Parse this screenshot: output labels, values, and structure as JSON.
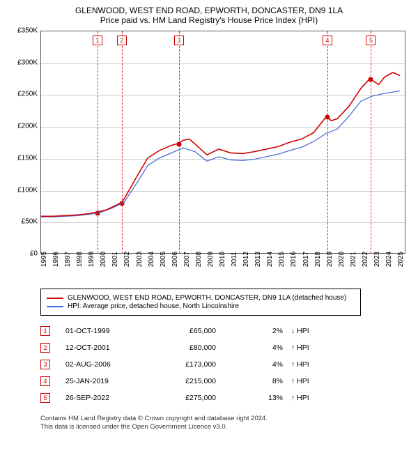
{
  "title": "GLENWOOD, WEST END ROAD, EPWORTH, DONCASTER, DN9 1LA",
  "subtitle": "Price paid vs. HM Land Registry's House Price Index (HPI)",
  "chart": {
    "type": "line",
    "background_color": "#ffffff",
    "grid_color": "#cccccc",
    "border_color": "#555555",
    "x": {
      "min": 1995,
      "max": 2025.7,
      "ticks": [
        1995,
        1996,
        1997,
        1998,
        1999,
        2000,
        2001,
        2002,
        2003,
        2004,
        2005,
        2006,
        2007,
        2008,
        2009,
        2010,
        2011,
        2012,
        2013,
        2014,
        2015,
        2016,
        2017,
        2018,
        2019,
        2020,
        2021,
        2022,
        2023,
        2024,
        2025
      ]
    },
    "y": {
      "min": 0,
      "max": 350000,
      "ticks": [
        0,
        50000,
        100000,
        150000,
        200000,
        250000,
        300000,
        350000
      ],
      "labels": [
        "£0",
        "£50K",
        "£100K",
        "£150K",
        "£200K",
        "£250K",
        "£300K",
        "£350K"
      ]
    },
    "series": [
      {
        "name": "GLENWOOD, WEST END ROAD, EPWORTH, DONCASTER, DN9 1LA (detached house)",
        "color": "#d00000",
        "width": 1.6,
        "points": [
          [
            1995,
            58000
          ],
          [
            1996,
            58000
          ],
          [
            1997,
            59000
          ],
          [
            1998,
            60000
          ],
          [
            1999,
            62000
          ],
          [
            1999.75,
            65000
          ],
          [
            2000.5,
            68000
          ],
          [
            2001.5,
            77000
          ],
          [
            2001.78,
            80000
          ],
          [
            2002,
            85000
          ],
          [
            2003,
            118000
          ],
          [
            2004,
            150000
          ],
          [
            2005,
            162000
          ],
          [
            2006,
            170000
          ],
          [
            2006.59,
            173000
          ],
          [
            2007,
            178000
          ],
          [
            2007.5,
            180000
          ],
          [
            2008,
            172000
          ],
          [
            2009,
            155000
          ],
          [
            2010,
            164000
          ],
          [
            2011,
            158000
          ],
          [
            2012,
            157000
          ],
          [
            2013,
            160000
          ],
          [
            2014,
            164000
          ],
          [
            2015,
            168000
          ],
          [
            2016,
            175000
          ],
          [
            2017,
            180000
          ],
          [
            2018,
            190000
          ],
          [
            2019.07,
            215000
          ],
          [
            2019.5,
            209000
          ],
          [
            2020,
            212000
          ],
          [
            2021,
            232000
          ],
          [
            2022,
            260000
          ],
          [
            2022.74,
            275000
          ],
          [
            2023,
            272000
          ],
          [
            2023.5,
            266000
          ],
          [
            2024,
            278000
          ],
          [
            2024.7,
            285000
          ],
          [
            2025.3,
            280000
          ]
        ]
      },
      {
        "name": "HPI: Average price, detached house, North Lincolnshire",
        "color": "#4a6fd4",
        "width": 1.3,
        "points": [
          [
            1995,
            57000
          ],
          [
            1996,
            57000
          ],
          [
            1997,
            58000
          ],
          [
            1998,
            59000
          ],
          [
            1999,
            61000
          ],
          [
            2000,
            64000
          ],
          [
            2001,
            71000
          ],
          [
            2002,
            80000
          ],
          [
            2003,
            108000
          ],
          [
            2004,
            138000
          ],
          [
            2005,
            150000
          ],
          [
            2006,
            158000
          ],
          [
            2007,
            166000
          ],
          [
            2008,
            160000
          ],
          [
            2009,
            145000
          ],
          [
            2010,
            152000
          ],
          [
            2011,
            147000
          ],
          [
            2012,
            146000
          ],
          [
            2013,
            148000
          ],
          [
            2014,
            152000
          ],
          [
            2015,
            156000
          ],
          [
            2016,
            162000
          ],
          [
            2017,
            167000
          ],
          [
            2018,
            176000
          ],
          [
            2019,
            188000
          ],
          [
            2020,
            196000
          ],
          [
            2021,
            216000
          ],
          [
            2022,
            240000
          ],
          [
            2023,
            248000
          ],
          [
            2024,
            252000
          ],
          [
            2025.3,
            256000
          ]
        ]
      }
    ],
    "markers": [
      {
        "n": 1,
        "year": 1999.75,
        "value": 65000,
        "color": "#d00000"
      },
      {
        "n": 2,
        "year": 2001.78,
        "value": 80000,
        "color": "#d00000"
      },
      {
        "n": 3,
        "year": 2006.59,
        "value": 173000,
        "color": "#d00000"
      },
      {
        "n": 4,
        "year": 2019.07,
        "value": 215000,
        "color": "#d00000"
      },
      {
        "n": 5,
        "year": 2022.74,
        "value": 275000,
        "color": "#d00000"
      }
    ]
  },
  "legend": [
    "GLENWOOD, WEST END ROAD, EPWORTH, DONCASTER, DN9 1LA (detached house)",
    "HPI: Average price, detached house, North Lincolnshire"
  ],
  "transactions": [
    {
      "n": 1,
      "date": "01-OCT-1999",
      "price": "£65,000",
      "delta": "2%",
      "dir": "↓",
      "vs": "HPI"
    },
    {
      "n": 2,
      "date": "12-OCT-2001",
      "price": "£80,000",
      "delta": "4%",
      "dir": "↑",
      "vs": "HPI"
    },
    {
      "n": 3,
      "date": "02-AUG-2006",
      "price": "£173,000",
      "delta": "4%",
      "dir": "↑",
      "vs": "HPI"
    },
    {
      "n": 4,
      "date": "25-JAN-2019",
      "price": "£215,000",
      "delta": "8%",
      "dir": "↑",
      "vs": "HPI"
    },
    {
      "n": 5,
      "date": "26-SEP-2022",
      "price": "£275,000",
      "delta": "13%",
      "dir": "↑",
      "vs": "HPI"
    }
  ],
  "footer": {
    "line1": "Contains HM Land Registry data © Crown copyright and database right 2024.",
    "line2": "This data is licensed under the Open Government Licence v3.0."
  }
}
